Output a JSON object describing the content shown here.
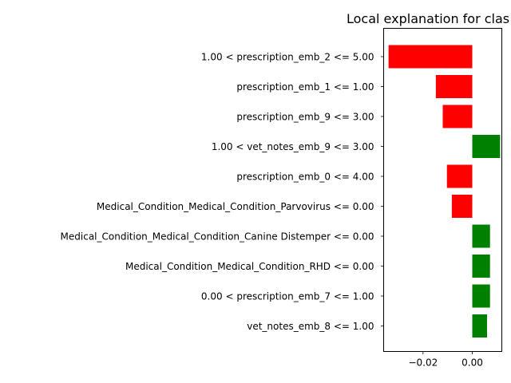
{
  "chart_data": {
    "type": "bar",
    "orientation": "horizontal",
    "title": "Local explanation for clas",
    "xlabel": "",
    "ylabel": "",
    "xlim": [
      -0.036,
      0.012
    ],
    "x_ticks": [
      {
        "value": -0.02,
        "label": "−0.02"
      },
      {
        "value": 0.0,
        "label": "0.00"
      }
    ],
    "grid": false,
    "colors": {
      "positive": "#008000",
      "negative": "#ff0000"
    },
    "bars": [
      {
        "label": "1.00 < prescription_emb_2 <= 5.00",
        "value": -0.034
      },
      {
        "label": "prescription_emb_1 <= 1.00",
        "value": -0.0148
      },
      {
        "label": "prescription_emb_9 <= 3.00",
        "value": -0.012
      },
      {
        "label": "1.00 < vet_notes_emb_9 <= 3.00",
        "value": 0.0113
      },
      {
        "label": "prescription_emb_0 <= 4.00",
        "value": -0.0103
      },
      {
        "label": "Medical_Condition_Medical_Condition_Parvovirus <= 0.00",
        "value": -0.0083
      },
      {
        "label": "Medical_Condition_Medical_Condition_Canine Distemper <= 0.00",
        "value": 0.0072
      },
      {
        "label": "Medical_Condition_Medical_Condition_RHD <= 0.00",
        "value": 0.0072
      },
      {
        "label": "0.00 < prescription_emb_7 <= 1.00",
        "value": 0.0072
      },
      {
        "label": "vet_notes_emb_8 <= 1.00",
        "value": 0.006
      }
    ]
  }
}
